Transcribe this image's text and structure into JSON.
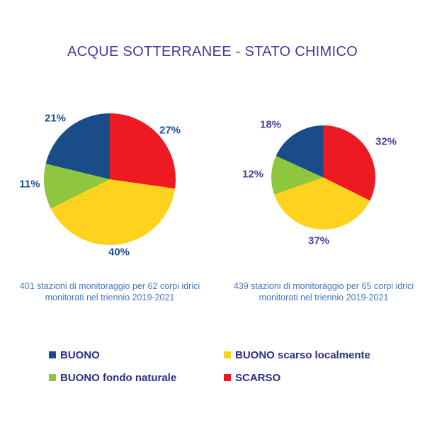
{
  "title": "ACQUE SOTTERRANEE - STATO CHIMICO",
  "theme": {
    "background": "#FFFFFF",
    "title_color": "#3C3C9E",
    "caption_color": "#4577C6",
    "legend_text_color": "#2A2F85",
    "left_label_color": "#1D4F96",
    "right_label_color": "#4A43A0"
  },
  "chart_data": [
    {
      "type": "pie",
      "name": "pie-left",
      "order": "clockwise-from-top",
      "slices": [
        {
          "label": "SCARSO",
          "value": 27,
          "pct": "27%",
          "color": "#EE1A22"
        },
        {
          "label": "BUONO scarso localmente",
          "value": 40,
          "pct": "40%",
          "color": "#FFD220"
        },
        {
          "label": "BUONO fondo naturale",
          "value": 11,
          "pct": "11%",
          "color": "#8EC63F"
        },
        {
          "label": "BUONO",
          "value": 21,
          "pct": "21%",
          "color": "#1A4C8A"
        }
      ],
      "caption_line1": "401 stazioni di monitoraggio per 62 corpi idrici",
      "caption_line2": "monitorati nel triennio 2019-2021"
    },
    {
      "type": "pie",
      "name": "pie-right",
      "order": "clockwise-from-top",
      "slices": [
        {
          "label": "SCARSO",
          "value": 32,
          "pct": "32%",
          "color": "#EE1A22"
        },
        {
          "label": "BUONO scarso localmente",
          "value": 37,
          "pct": "37%",
          "color": "#FFD220"
        },
        {
          "label": "BUONO fondo naturale",
          "value": 12,
          "pct": "12%",
          "color": "#8EC63F"
        },
        {
          "label": "BUONO",
          "value": 18,
          "pct": "18%",
          "color": "#1A4C8A"
        }
      ],
      "caption_line1": "439 stazioni di monitoraggio per 65 corpi idrici",
      "caption_line2": "monitorati nel triennio 2019-2021"
    }
  ],
  "legend": {
    "items": [
      {
        "label": "BUONO",
        "color": "#1A4C8A"
      },
      {
        "label": "BUONO scarso localmente",
        "color": "#FFD220"
      },
      {
        "label": "BUONO fondo naturale",
        "color": "#8EC63F"
      },
      {
        "label": "SCARSO",
        "color": "#EE1A22"
      }
    ]
  }
}
